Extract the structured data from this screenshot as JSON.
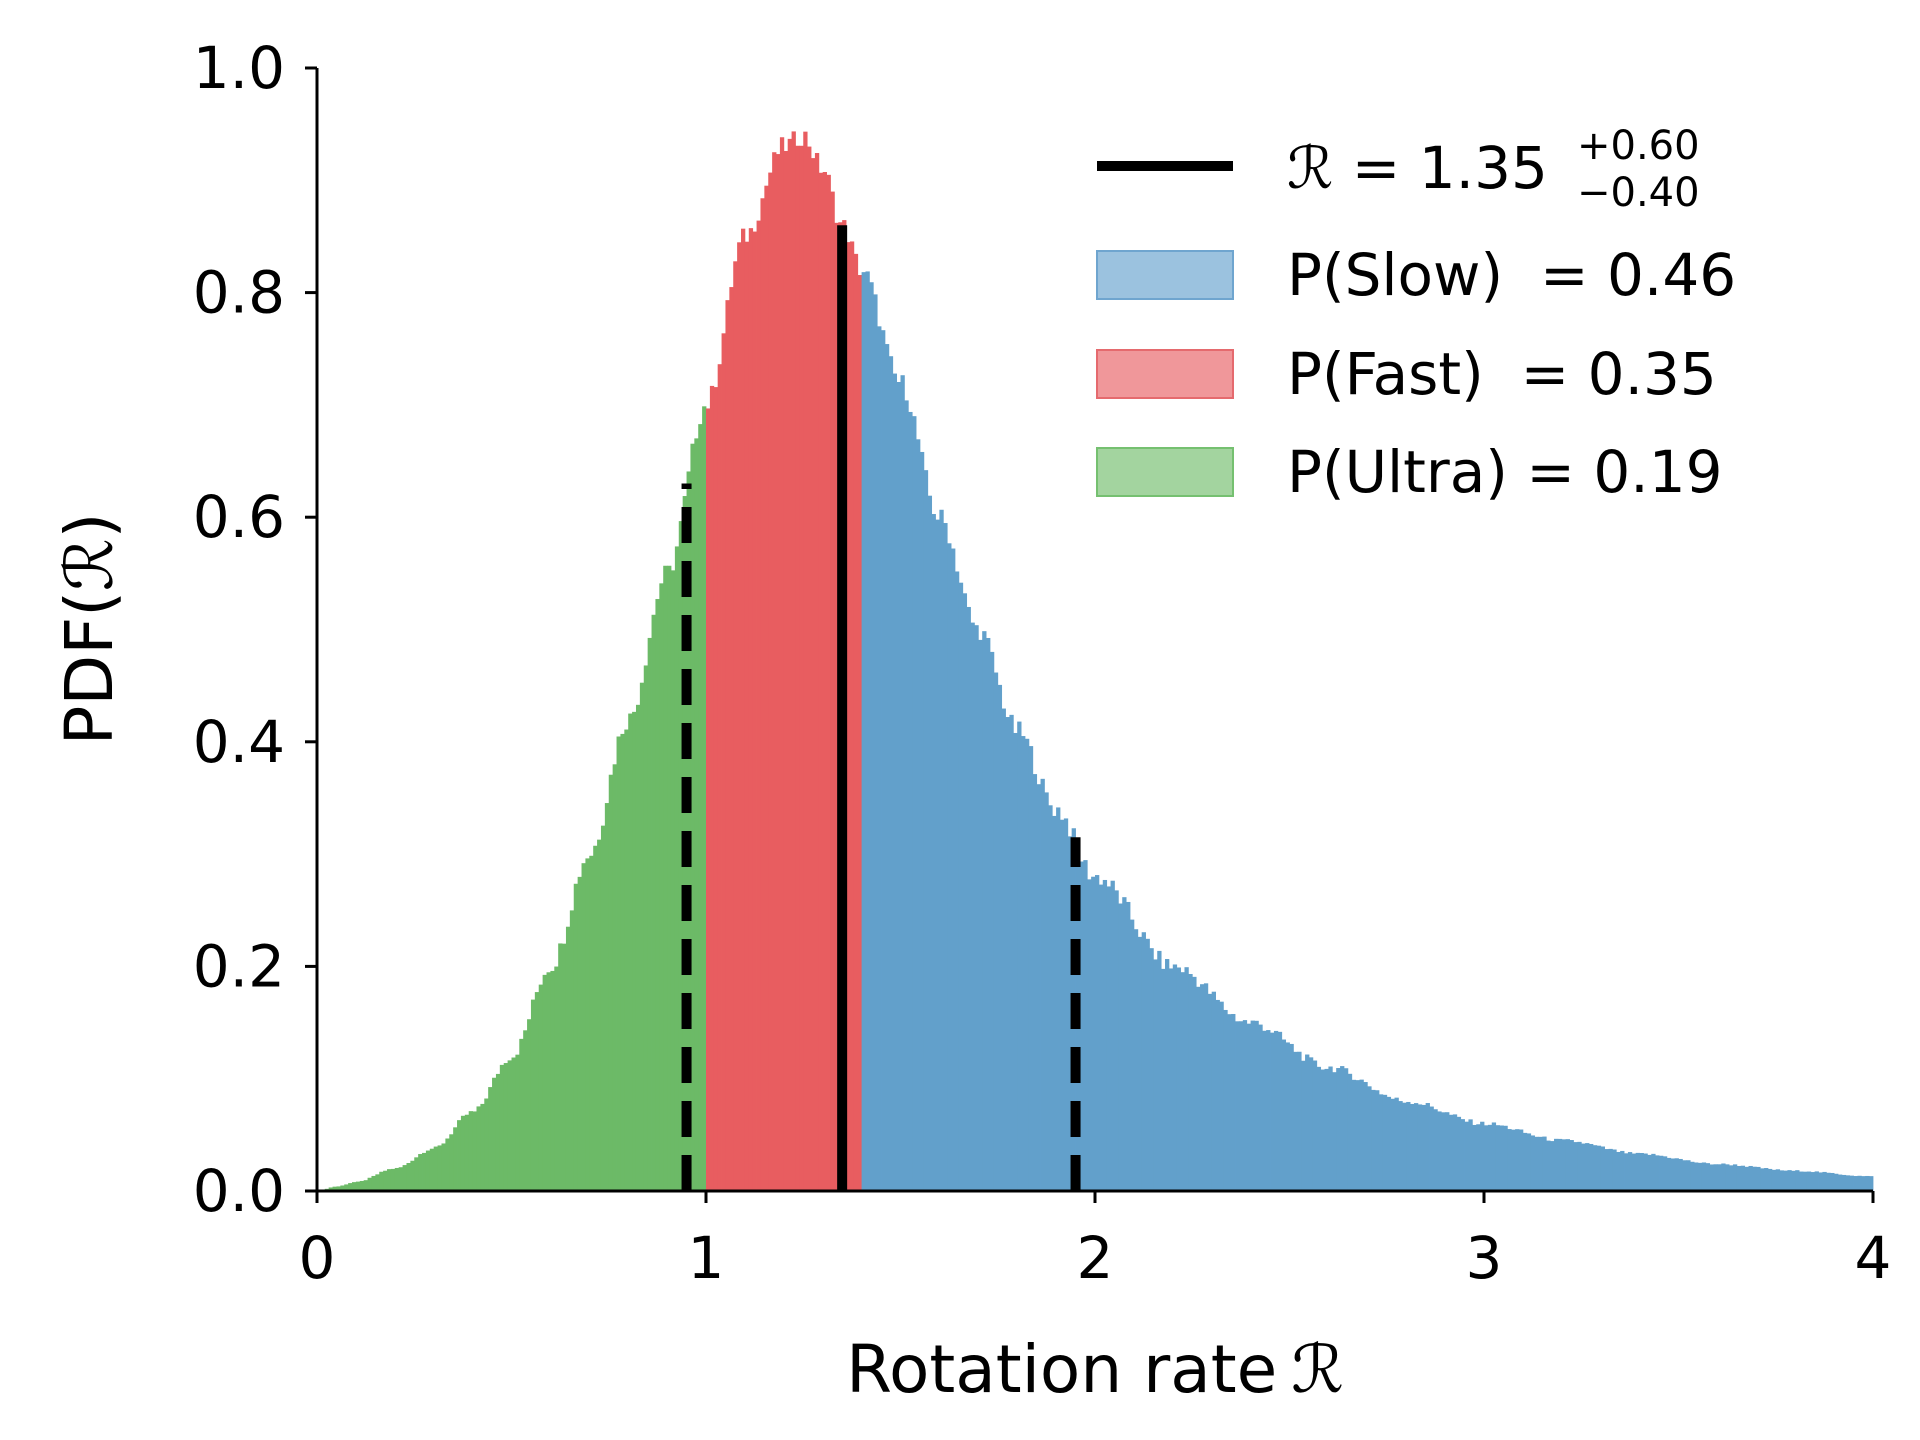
{
  "chart_data": {
    "type": "histogram",
    "xlabel": "Rotation rate",
    "xlabel_symbol": "ℛ",
    "ylabel": "PDF(",
    "ylabel_symbol": "ℛ",
    "ylabel_close": ")",
    "xlim": [
      0,
      4
    ],
    "ylim": [
      0,
      1.0
    ],
    "xticks": [
      "0",
      "1",
      "2",
      "3",
      "4"
    ],
    "yticks": [
      "0.0",
      "0.2",
      "0.4",
      "0.6",
      "0.8",
      "1.0"
    ],
    "grid": false,
    "legend_position": "top-right",
    "distribution_points": [
      {
        "x": 0.0,
        "y": 0.0
      },
      {
        "x": 0.05,
        "y": 0.004
      },
      {
        "x": 0.1,
        "y": 0.008
      },
      {
        "x": 0.2,
        "y": 0.02
      },
      {
        "x": 0.3,
        "y": 0.038
      },
      {
        "x": 0.4,
        "y": 0.07
      },
      {
        "x": 0.5,
        "y": 0.12
      },
      {
        "x": 0.6,
        "y": 0.2
      },
      {
        "x": 0.7,
        "y": 0.3
      },
      {
        "x": 0.8,
        "y": 0.42
      },
      {
        "x": 0.9,
        "y": 0.55
      },
      {
        "x": 1.0,
        "y": 0.7
      },
      {
        "x": 1.1,
        "y": 0.85
      },
      {
        "x": 1.2,
        "y": 0.93
      },
      {
        "x": 1.25,
        "y": 0.94
      },
      {
        "x": 1.3,
        "y": 0.91
      },
      {
        "x": 1.35,
        "y": 0.86
      },
      {
        "x": 1.4,
        "y": 0.82
      },
      {
        "x": 1.5,
        "y": 0.72
      },
      {
        "x": 1.6,
        "y": 0.6
      },
      {
        "x": 1.7,
        "y": 0.5
      },
      {
        "x": 1.8,
        "y": 0.41
      },
      {
        "x": 1.9,
        "y": 0.34
      },
      {
        "x": 2.0,
        "y": 0.28
      },
      {
        "x": 2.2,
        "y": 0.2
      },
      {
        "x": 2.4,
        "y": 0.15
      },
      {
        "x": 2.6,
        "y": 0.11
      },
      {
        "x": 2.8,
        "y": 0.08
      },
      {
        "x": 3.0,
        "y": 0.06
      },
      {
        "x": 3.2,
        "y": 0.045
      },
      {
        "x": 3.4,
        "y": 0.033
      },
      {
        "x": 3.6,
        "y": 0.024
      },
      {
        "x": 3.8,
        "y": 0.018
      },
      {
        "x": 4.0,
        "y": 0.013
      }
    ],
    "regions": [
      {
        "name": "Ultra",
        "x_start": 0.0,
        "x_end": 1.0,
        "color": "#6cba67"
      },
      {
        "name": "Fast",
        "x_start": 1.0,
        "x_end": 1.4,
        "color": "#e85d60"
      },
      {
        "name": "Slow",
        "x_start": 1.4,
        "x_end": 4.0,
        "color": "#62a0cb"
      }
    ],
    "median_line": {
      "x": 1.35,
      "y_top": 0.86
    },
    "interval_lines": [
      {
        "x": 0.95,
        "y_top": 0.63
      },
      {
        "x": 1.95,
        "y_top": 0.315
      }
    ],
    "legend": [
      {
        "type": "line",
        "color": "#000000",
        "symbol": "ℛ",
        "text": " = 1.35",
        "sup": "+0.60",
        "sub": "−0.40"
      },
      {
        "type": "patch",
        "color": "#9bc2df",
        "edge": "#6fa5cf",
        "text": "P(Slow)  = 0.46"
      },
      {
        "type": "patch",
        "color": "#f0979a",
        "edge": "#e56a6e",
        "text": "P(Fast)  = 0.35"
      },
      {
        "type": "patch",
        "color": "#a3d49f",
        "edge": "#75c070",
        "text": "P(Ultra) = 0.19"
      }
    ]
  }
}
